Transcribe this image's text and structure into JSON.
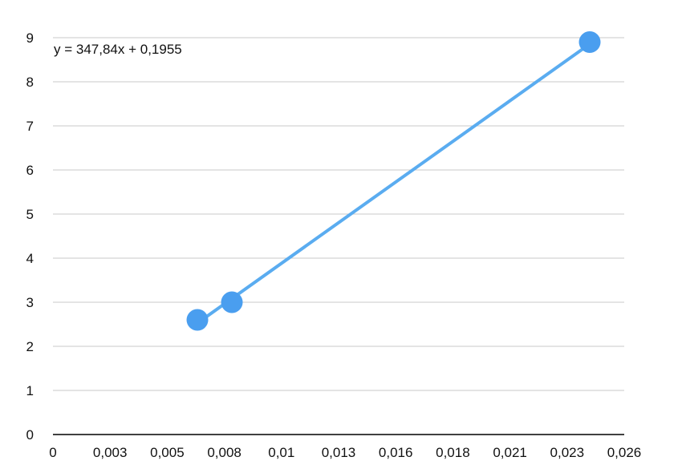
{
  "chart_data": {
    "type": "scatter",
    "title": "",
    "xlabel": "",
    "ylabel": "",
    "xlim": [
      0,
      0.0265
    ],
    "ylim": [
      0,
      9
    ],
    "grid": true,
    "x_ticks": [
      {
        "value": 0,
        "label": "0"
      },
      {
        "value": 0.00265,
        "label": "0,003"
      },
      {
        "value": 0.0053,
        "label": "0,005"
      },
      {
        "value": 0.00795,
        "label": "0,008"
      },
      {
        "value": 0.0106,
        "label": "0,01"
      },
      {
        "value": 0.01325,
        "label": "0,013"
      },
      {
        "value": 0.0159,
        "label": "0,016"
      },
      {
        "value": 0.01855,
        "label": "0,018"
      },
      {
        "value": 0.0212,
        "label": "0,021"
      },
      {
        "value": 0.02385,
        "label": "0,023"
      },
      {
        "value": 0.0265,
        "label": "0,026"
      }
    ],
    "y_ticks": [
      {
        "value": 0,
        "label": "0"
      },
      {
        "value": 1,
        "label": "1"
      },
      {
        "value": 2,
        "label": "2"
      },
      {
        "value": 3,
        "label": "3"
      },
      {
        "value": 4,
        "label": "4"
      },
      {
        "value": 5,
        "label": "5"
      },
      {
        "value": 6,
        "label": "6"
      },
      {
        "value": 7,
        "label": "7"
      },
      {
        "value": 8,
        "label": "8"
      },
      {
        "value": 9,
        "label": "9"
      }
    ],
    "series": [
      {
        "points": [
          {
            "x": 0.0067,
            "y": 2.6
          },
          {
            "x": 0.0083,
            "y": 3.0
          },
          {
            "x": 0.0249,
            "y": 8.9
          }
        ],
        "color": "#4a9eef"
      }
    ],
    "trendline": {
      "slope": 347.84,
      "intercept": 0.1955,
      "x_from": 0.0067,
      "x_to": 0.0249,
      "label": "y = 347,84x + 0,1955",
      "color": "#5aacf0"
    },
    "colors": {
      "grid": "#c8c8c8",
      "axis": "#000000",
      "point": "#4a9eef",
      "text": "#111111"
    }
  }
}
